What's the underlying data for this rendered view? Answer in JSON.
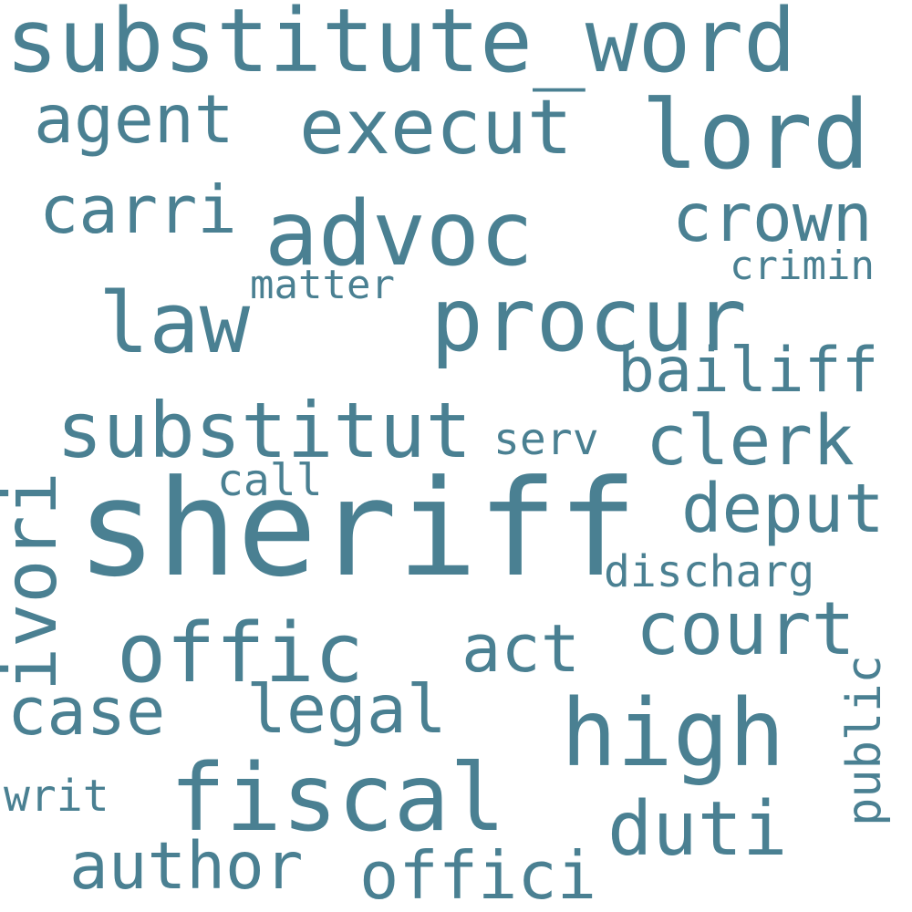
{
  "style": {
    "text_color": "#4a8092",
    "background": "#ffffff"
  },
  "words": {
    "substitute_word": "substitute_word",
    "lord": "lord",
    "agent": "agent",
    "execut": "execut",
    "carri": "carri",
    "advoc": "advoc",
    "crown": "crown",
    "matter": "matter",
    "crimin": "crimin",
    "law": "law",
    "procur": "procur",
    "bailiff": "bailiff",
    "substitut": "substitut",
    "serv": "serv",
    "clerk": "clerk",
    "ivori": "ivori",
    "call": "call",
    "sheriff": "sheriff",
    "deput": "deput",
    "discharg": "discharg",
    "offic": "offic",
    "act": "act",
    "court": "court",
    "case": "case",
    "legal": "legal",
    "high": "high",
    "public": "public",
    "writ": "writ",
    "fiscal": "fiscal",
    "duti": "duti",
    "author": "author",
    "offici": "offici"
  }
}
